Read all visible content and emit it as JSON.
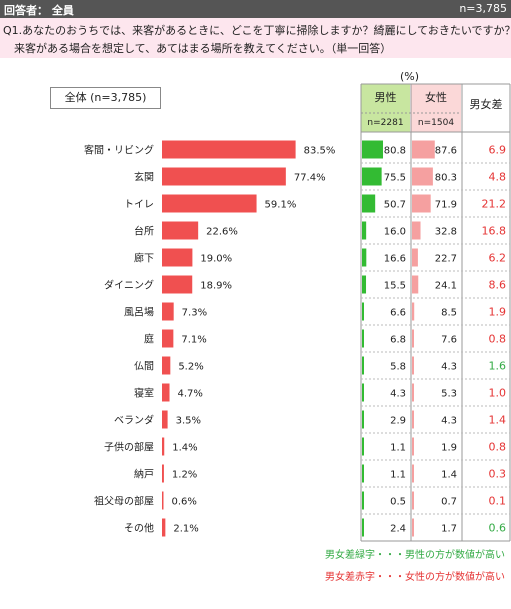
{
  "header": {
    "respondent_label": "回答者： 全員",
    "n_label": "n=3,785"
  },
  "question": {
    "line1": "Q1.あなたのおうちでは、来客があるときに、どこを丁寧に掃除しますか？綺麗にしておきたいですか？",
    "line2": "来客がある場合を想定して、あてはまる場所を教えてください。（単一回答）"
  },
  "total_box_label": "全体 (n=3,785)",
  "pct_unit_label": "(%)",
  "table_headers": {
    "male": "男性",
    "female": "女性",
    "male_n": "n=2281",
    "female_n": "n=1504",
    "diff": "男女差"
  },
  "colors": {
    "bar": "#f05050",
    "male_bar": "#33bb33",
    "female_bar": "#f5a0a0",
    "male_header_bg": "#c8e6a0",
    "female_header_bg": "#fbd8d8",
    "diff_red": "#e53333",
    "diff_green": "#33aa44"
  },
  "chart_data": {
    "type": "bar",
    "orientation": "horizontal",
    "title": "",
    "xlabel": "",
    "ylabel": "",
    "unit": "%",
    "categories": [
      "客間・リビング",
      "玄関",
      "トイレ",
      "台所",
      "廊下",
      "ダイニング",
      "風呂場",
      "庭",
      "仏間",
      "寝室",
      "ベランダ",
      "子供の部屋",
      "納戸",
      "祖父母の部屋",
      "その他"
    ],
    "total": [
      83.5,
      77.4,
      59.1,
      22.6,
      19.0,
      18.9,
      7.3,
      7.1,
      5.2,
      4.7,
      3.5,
      1.4,
      1.2,
      0.6,
      2.1
    ],
    "total_labels": [
      "83.5%",
      "77.4%",
      "59.1%",
      "22.6%",
      "19.0%",
      "18.9%",
      "7.3%",
      "7.1%",
      "5.2%",
      "4.7%",
      "3.5%",
      "1.4%",
      "1.2%",
      "0.6%",
      "2.1%"
    ],
    "male": [
      80.8,
      75.5,
      50.7,
      16.0,
      16.6,
      15.5,
      6.6,
      6.8,
      5.8,
      4.3,
      2.9,
      1.1,
      1.1,
      0.5,
      2.4
    ],
    "male_labels": [
      "80.8",
      "75.5",
      "50.7",
      "16.0",
      "16.6",
      "15.5",
      "6.6",
      "6.8",
      "5.8",
      "4.3",
      "2.9",
      "1.1",
      "1.1",
      "0.5",
      "2.4"
    ],
    "female": [
      87.6,
      80.3,
      71.9,
      32.8,
      22.7,
      24.1,
      8.5,
      7.6,
      4.3,
      5.3,
      4.3,
      1.9,
      1.4,
      0.7,
      1.7
    ],
    "female_labels": [
      "87.6",
      "80.3",
      "71.9",
      "32.8",
      "22.7",
      "24.1",
      "8.5",
      "7.6",
      "4.3",
      "5.3",
      "4.3",
      "1.9",
      "1.4",
      "0.7",
      "1.7"
    ],
    "diff": [
      6.9,
      4.8,
      21.2,
      16.8,
      6.2,
      8.6,
      1.9,
      0.8,
      1.6,
      1.0,
      1.4,
      0.8,
      0.3,
      0.1,
      0.6
    ],
    "diff_labels": [
      "6.9",
      "4.8",
      "21.2",
      "16.8",
      "6.2",
      "8.6",
      "1.9",
      "0.8",
      "1.6",
      "1.0",
      "1.4",
      "0.8",
      "0.3",
      "0.1",
      "0.6"
    ],
    "diff_color": [
      "red",
      "red",
      "red",
      "red",
      "red",
      "red",
      "red",
      "red",
      "green",
      "red",
      "red",
      "red",
      "red",
      "red",
      "green"
    ],
    "xlim": [
      0,
      100
    ]
  },
  "legend": {
    "green_note": "男女差緑字・・・男性の方が数値が高い",
    "red_note": "男女差赤字・・・女性の方が数値が高い"
  }
}
